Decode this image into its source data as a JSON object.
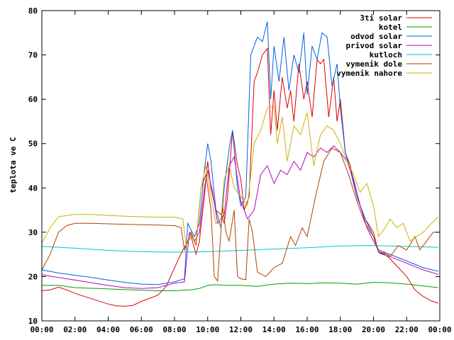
{
  "chart_data": {
    "type": "line",
    "ylabel": "teplota ve C",
    "xlabel": "",
    "title": "",
    "ylim": [
      10,
      80
    ],
    "xlim": [
      0,
      24
    ],
    "grid": false,
    "legend_position": "top-right",
    "x_ticks": [
      "00:00",
      "02:00",
      "04:00",
      "06:00",
      "08:00",
      "10:00",
      "12:00",
      "14:00",
      "16:00",
      "18:00",
      "20:00",
      "22:00",
      "00:00"
    ],
    "y_ticks": [
      10,
      20,
      30,
      40,
      50,
      60,
      70,
      80
    ],
    "series": [
      {
        "name": "3ti solar",
        "color": "#e00000",
        "points": [
          [
            0,
            16.8
          ],
          [
            0.5,
            17
          ],
          [
            1,
            17.6
          ],
          [
            1.5,
            17
          ],
          [
            2,
            16.2
          ],
          [
            3,
            15
          ],
          [
            4,
            13.8
          ],
          [
            4.5,
            13.4
          ],
          [
            5,
            13.3
          ],
          [
            5.5,
            13.5
          ],
          [
            6,
            14.4
          ],
          [
            7,
            15.8
          ],
          [
            7.5,
            17.8
          ],
          [
            8,
            22
          ],
          [
            8.5,
            26
          ],
          [
            9,
            29
          ],
          [
            9.3,
            25
          ],
          [
            9.5,
            28
          ],
          [
            9.8,
            38
          ],
          [
            10,
            46
          ],
          [
            10.2,
            40
          ],
          [
            10.5,
            35
          ],
          [
            10.8,
            34
          ],
          [
            11,
            32
          ],
          [
            11.2,
            38
          ],
          [
            11.5,
            53
          ],
          [
            11.8,
            45
          ],
          [
            12,
            42
          ],
          [
            12.2,
            35
          ],
          [
            12.5,
            38
          ],
          [
            12.8,
            64
          ],
          [
            13,
            66
          ],
          [
            13.3,
            70
          ],
          [
            13.6,
            71.5
          ],
          [
            13.8,
            52
          ],
          [
            14,
            62
          ],
          [
            14.2,
            53
          ],
          [
            14.5,
            65
          ],
          [
            14.8,
            58
          ],
          [
            15,
            62
          ],
          [
            15.2,
            55
          ],
          [
            15.5,
            68
          ],
          [
            15.8,
            60
          ],
          [
            16,
            64
          ],
          [
            16.3,
            56
          ],
          [
            16.6,
            69
          ],
          [
            16.8,
            68
          ],
          [
            17,
            69
          ],
          [
            17.3,
            56
          ],
          [
            17.6,
            65
          ],
          [
            17.8,
            55
          ],
          [
            18,
            60
          ],
          [
            18.3,
            48
          ],
          [
            18.6,
            45
          ],
          [
            19,
            38
          ],
          [
            19.5,
            33
          ],
          [
            20,
            30
          ],
          [
            20.3,
            25.5
          ],
          [
            20.7,
            25
          ],
          [
            21,
            24
          ],
          [
            21.5,
            22
          ],
          [
            22,
            20
          ],
          [
            22.5,
            17
          ],
          [
            23,
            15.5
          ],
          [
            23.5,
            14.5
          ],
          [
            23.9,
            14
          ]
        ]
      },
      {
        "name": "kotel",
        "color": "#00a000",
        "points": [
          [
            0,
            18
          ],
          [
            1,
            18
          ],
          [
            2,
            17.5
          ],
          [
            4,
            17.2
          ],
          [
            6,
            16.9
          ],
          [
            7,
            16.8
          ],
          [
            8,
            16.8
          ],
          [
            9,
            17
          ],
          [
            9.5,
            17.3
          ],
          [
            10,
            18
          ],
          [
            10.5,
            18.2
          ],
          [
            11,
            18
          ],
          [
            12,
            18
          ],
          [
            13,
            17.8
          ],
          [
            14,
            18.3
          ],
          [
            15,
            18.5
          ],
          [
            16,
            18.4
          ],
          [
            17,
            18.6
          ],
          [
            18,
            18.5
          ],
          [
            19,
            18.3
          ],
          [
            20,
            18.7
          ],
          [
            21,
            18.6
          ],
          [
            22,
            18.3
          ],
          [
            23,
            17.9
          ],
          [
            23.9,
            17.5
          ]
        ]
      },
      {
        "name": "odvod solar",
        "color": "#0060e0",
        "points": [
          [
            0,
            21.5
          ],
          [
            1,
            20.8
          ],
          [
            2,
            20.3
          ],
          [
            3,
            19.8
          ],
          [
            4,
            19.2
          ],
          [
            5,
            18.7
          ],
          [
            6,
            18.3
          ],
          [
            7,
            18.2
          ],
          [
            8,
            18.8
          ],
          [
            8.6,
            19.5
          ],
          [
            8.8,
            32
          ],
          [
            9.2,
            29
          ],
          [
            9.5,
            32
          ],
          [
            9.8,
            44
          ],
          [
            10,
            50
          ],
          [
            10.2,
            46
          ],
          [
            10.5,
            35
          ],
          [
            10.8,
            31
          ],
          [
            11,
            40
          ],
          [
            11.3,
            49
          ],
          [
            11.5,
            53
          ],
          [
            11.8,
            40
          ],
          [
            12,
            36
          ],
          [
            12.3,
            38
          ],
          [
            12.6,
            70
          ],
          [
            13,
            74
          ],
          [
            13.3,
            73
          ],
          [
            13.6,
            77.5
          ],
          [
            13.8,
            60
          ],
          [
            14,
            72
          ],
          [
            14.3,
            64
          ],
          [
            14.6,
            74
          ],
          [
            14.9,
            62
          ],
          [
            15.2,
            70
          ],
          [
            15.5,
            66
          ],
          [
            15.8,
            75
          ],
          [
            16,
            61
          ],
          [
            16.3,
            72
          ],
          [
            16.6,
            69
          ],
          [
            16.9,
            75
          ],
          [
            17.2,
            74
          ],
          [
            17.5,
            63
          ],
          [
            17.8,
            68
          ],
          [
            18,
            58
          ],
          [
            18.3,
            48
          ],
          [
            18.6,
            44
          ],
          [
            19,
            38
          ],
          [
            19.5,
            33
          ],
          [
            20,
            29
          ],
          [
            20.3,
            25.6
          ],
          [
            21,
            25
          ],
          [
            22,
            23.5
          ],
          [
            23,
            22
          ],
          [
            23.9,
            21.2
          ]
        ]
      },
      {
        "name": "privod solar",
        "color": "#c000c0",
        "points": [
          [
            0,
            20.4
          ],
          [
            1,
            19.8
          ],
          [
            2,
            19.2
          ],
          [
            3,
            18.6
          ],
          [
            4,
            18
          ],
          [
            5,
            17.5
          ],
          [
            6,
            17.3
          ],
          [
            7,
            17.5
          ],
          [
            8,
            18.5
          ],
          [
            8.6,
            18.8
          ],
          [
            8.9,
            30
          ],
          [
            9.2,
            28
          ],
          [
            9.5,
            30
          ],
          [
            9.8,
            40
          ],
          [
            10,
            44
          ],
          [
            10.3,
            39
          ],
          [
            10.6,
            32
          ],
          [
            11,
            34
          ],
          [
            11.3,
            45
          ],
          [
            11.6,
            47
          ],
          [
            12,
            37
          ],
          [
            12.4,
            33
          ],
          [
            12.8,
            35
          ],
          [
            13.2,
            43
          ],
          [
            13.6,
            45
          ],
          [
            14,
            41
          ],
          [
            14.4,
            44
          ],
          [
            14.8,
            43
          ],
          [
            15.2,
            46
          ],
          [
            15.6,
            44
          ],
          [
            16,
            48
          ],
          [
            16.4,
            47
          ],
          [
            16.8,
            49
          ],
          [
            17.2,
            48
          ],
          [
            17.6,
            49.5
          ],
          [
            18,
            48
          ],
          [
            18.4,
            46
          ],
          [
            18.8,
            42
          ],
          [
            19.2,
            36
          ],
          [
            19.6,
            31
          ],
          [
            20,
            28
          ],
          [
            20.4,
            25.2
          ],
          [
            21,
            24.5
          ],
          [
            22,
            23
          ],
          [
            23,
            21.5
          ],
          [
            23.9,
            20.5
          ]
        ]
      },
      {
        "name": "kutloch",
        "color": "#00c8c8",
        "points": [
          [
            0,
            26.8
          ],
          [
            2,
            26.4
          ],
          [
            4,
            25.9
          ],
          [
            6,
            25.6
          ],
          [
            8,
            25.5
          ],
          [
            10,
            25.6
          ],
          [
            12,
            25.9
          ],
          [
            14,
            26.2
          ],
          [
            16,
            26.5
          ],
          [
            18,
            26.9
          ],
          [
            20,
            27
          ],
          [
            22,
            26.8
          ],
          [
            23.9,
            26.6
          ]
        ]
      },
      {
        "name": "vymenik dole",
        "color": "#b04000",
        "points": [
          [
            0,
            21.5
          ],
          [
            0.5,
            25
          ],
          [
            1,
            30
          ],
          [
            1.5,
            31.5
          ],
          [
            2,
            32
          ],
          [
            3,
            32
          ],
          [
            4,
            31.9
          ],
          [
            5,
            31.8
          ],
          [
            6,
            31.7
          ],
          [
            7,
            31.6
          ],
          [
            8,
            31.5
          ],
          [
            8.4,
            31
          ],
          [
            8.6,
            26
          ],
          [
            8.8,
            28
          ],
          [
            9,
            30
          ],
          [
            9.3,
            27
          ],
          [
            9.6,
            40
          ],
          [
            9.9,
            43
          ],
          [
            10.2,
            35
          ],
          [
            10.4,
            20
          ],
          [
            10.6,
            19
          ],
          [
            10.9,
            36
          ],
          [
            11.1,
            30
          ],
          [
            11.3,
            28
          ],
          [
            11.6,
            35
          ],
          [
            11.8,
            20
          ],
          [
            12,
            19.5
          ],
          [
            12.3,
            19.3
          ],
          [
            12.5,
            33
          ],
          [
            12.7,
            30
          ],
          [
            13,
            21
          ],
          [
            13.5,
            20
          ],
          [
            14,
            22
          ],
          [
            14.5,
            23
          ],
          [
            15,
            29
          ],
          [
            15.3,
            27
          ],
          [
            15.7,
            31
          ],
          [
            16,
            29
          ],
          [
            16.5,
            38
          ],
          [
            17,
            46
          ],
          [
            17.5,
            49
          ],
          [
            18,
            48
          ],
          [
            18.5,
            43
          ],
          [
            19,
            37
          ],
          [
            19.5,
            32
          ],
          [
            20,
            29
          ],
          [
            20.3,
            26
          ],
          [
            20.7,
            25.5
          ],
          [
            21,
            24.5
          ],
          [
            21.5,
            27
          ],
          [
            22,
            26
          ],
          [
            22.5,
            29
          ],
          [
            22.8,
            26
          ],
          [
            23.2,
            28
          ],
          [
            23.6,
            30
          ],
          [
            23.9,
            30
          ]
        ]
      },
      {
        "name": "vymenik nahore",
        "color": "#c8b400",
        "points": [
          [
            0,
            27.5
          ],
          [
            0.5,
            31
          ],
          [
            1,
            33.5
          ],
          [
            2,
            34
          ],
          [
            3,
            34
          ],
          [
            4,
            33.8
          ],
          [
            5,
            33.6
          ],
          [
            6,
            33.5
          ],
          [
            7,
            33.4
          ],
          [
            8,
            33.4
          ],
          [
            8.5,
            33
          ],
          [
            8.7,
            27
          ],
          [
            9,
            29
          ],
          [
            9.3,
            28
          ],
          [
            9.6,
            40
          ],
          [
            9.9,
            45
          ],
          [
            10.2,
            38
          ],
          [
            10.5,
            32
          ],
          [
            10.8,
            33
          ],
          [
            11,
            42
          ],
          [
            11.3,
            45
          ],
          [
            11.6,
            40
          ],
          [
            12,
            38
          ],
          [
            12.4,
            36
          ],
          [
            12.8,
            50
          ],
          [
            13.2,
            53
          ],
          [
            13.6,
            58
          ],
          [
            14,
            58.5
          ],
          [
            14.2,
            50
          ],
          [
            14.5,
            56
          ],
          [
            14.8,
            46
          ],
          [
            15.2,
            54
          ],
          [
            15.6,
            52
          ],
          [
            16,
            57
          ],
          [
            16.4,
            45
          ],
          [
            16.8,
            52
          ],
          [
            17.2,
            54
          ],
          [
            17.6,
            53
          ],
          [
            18,
            50
          ],
          [
            18.4,
            46
          ],
          [
            18.8,
            43
          ],
          [
            19.2,
            39
          ],
          [
            19.6,
            41
          ],
          [
            20,
            36
          ],
          [
            20.3,
            29
          ],
          [
            20.7,
            31
          ],
          [
            21,
            33
          ],
          [
            21.4,
            31
          ],
          [
            21.8,
            32
          ],
          [
            22.2,
            28
          ],
          [
            22.6,
            29
          ],
          [
            23,
            30
          ],
          [
            23.5,
            32
          ],
          [
            23.9,
            33.5
          ]
        ]
      }
    ]
  }
}
